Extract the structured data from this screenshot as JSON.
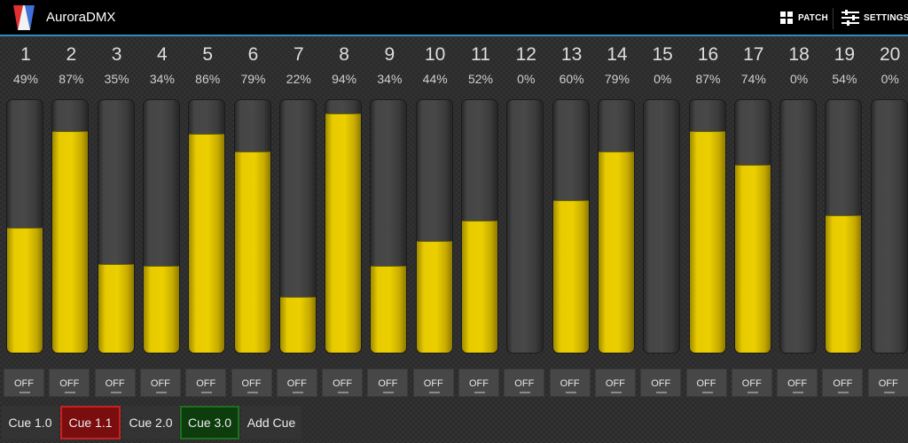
{
  "app": {
    "title": "AuroraDMX"
  },
  "actionbar": {
    "patch_label": "PATCH",
    "settings_label": "SETTINGS"
  },
  "channels": [
    {
      "number": "1",
      "percent_label": "49%",
      "level": 0.49,
      "off_label": "OFF"
    },
    {
      "number": "2",
      "percent_label": "87%",
      "level": 0.87,
      "off_label": "OFF"
    },
    {
      "number": "3",
      "percent_label": "35%",
      "level": 0.35,
      "off_label": "OFF"
    },
    {
      "number": "4",
      "percent_label": "34%",
      "level": 0.34,
      "off_label": "OFF"
    },
    {
      "number": "5",
      "percent_label": "86%",
      "level": 0.86,
      "off_label": "OFF"
    },
    {
      "number": "6",
      "percent_label": "79%",
      "level": 0.79,
      "off_label": "OFF"
    },
    {
      "number": "7",
      "percent_label": "22%",
      "level": 0.22,
      "off_label": "OFF"
    },
    {
      "number": "8",
      "percent_label": "94%",
      "level": 0.94,
      "off_label": "OFF"
    },
    {
      "number": "9",
      "percent_label": "34%",
      "level": 0.34,
      "off_label": "OFF"
    },
    {
      "number": "10",
      "percent_label": "44%",
      "level": 0.44,
      "off_label": "OFF"
    },
    {
      "number": "11",
      "percent_label": "52%",
      "level": 0.52,
      "off_label": "OFF"
    },
    {
      "number": "12",
      "percent_label": "0%",
      "level": 0.0,
      "off_label": "OFF"
    },
    {
      "number": "13",
      "percent_label": "60%",
      "level": 0.6,
      "off_label": "OFF"
    },
    {
      "number": "14",
      "percent_label": "79%",
      "level": 0.79,
      "off_label": "OFF"
    },
    {
      "number": "15",
      "percent_label": "0%",
      "level": 0.0,
      "off_label": "OFF"
    },
    {
      "number": "16",
      "percent_label": "87%",
      "level": 0.87,
      "off_label": "OFF"
    },
    {
      "number": "17",
      "percent_label": "74%",
      "level": 0.74,
      "off_label": "OFF"
    },
    {
      "number": "18",
      "percent_label": "0%",
      "level": 0.0,
      "off_label": "OFF"
    },
    {
      "number": "19",
      "percent_label": "54%",
      "level": 0.54,
      "off_label": "OFF"
    },
    {
      "number": "20",
      "percent_label": "0%",
      "level": 0.0,
      "off_label": "OFF"
    }
  ],
  "cues": [
    {
      "label": "Cue 1.0",
      "state": "normal"
    },
    {
      "label": "Cue 1.1",
      "state": "selected-red"
    },
    {
      "label": "Cue 2.0",
      "state": "normal"
    },
    {
      "label": "Cue 3.0",
      "state": "selected-green"
    },
    {
      "label": "Add Cue",
      "state": "normal"
    }
  ],
  "colors": {
    "actionbar_bg": "#000000",
    "actionbar_accent": "#2e8fb8",
    "fader_fill": "#ebcf00",
    "cue_red": "#c52222",
    "cue_green": "#1f6f1f"
  },
  "icons": {
    "app_logo": "aurora-logo-icon",
    "patch": "grid-icon",
    "settings": "sliders-icon"
  }
}
